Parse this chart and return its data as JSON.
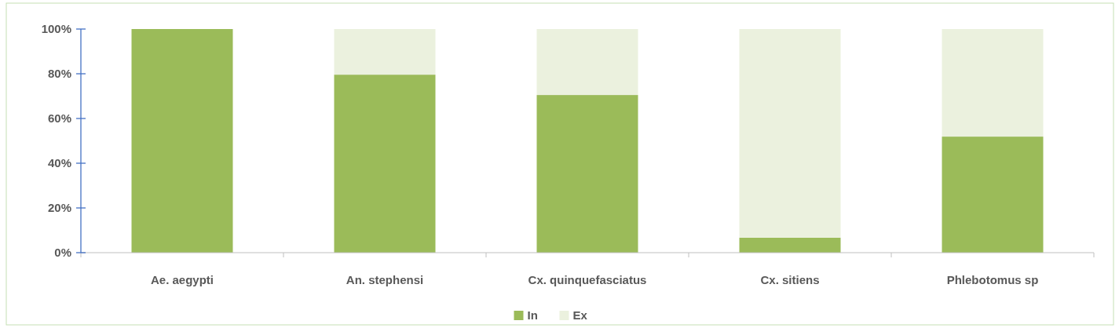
{
  "chart_data": {
    "type": "bar",
    "stacked": true,
    "categories": [
      "Ae. aegypti",
      "An. stephensi",
      "Cx. quinquefasciatus",
      "Cx. sitiens",
      "Phlebotomus sp"
    ],
    "series": [
      {
        "name": "In",
        "color": "#9bbb59",
        "values": [
          100,
          79.6,
          70.5,
          6.7,
          51.9
        ]
      },
      {
        "name": "Ex",
        "color": "#ebf1de",
        "values": [
          0,
          20.4,
          29.5,
          93.3,
          48.1
        ]
      }
    ],
    "ylim": [
      0,
      100
    ],
    "yticks": [
      {
        "value": 0,
        "label": "0%"
      },
      {
        "value": 20,
        "label": "20%"
      },
      {
        "value": 40,
        "label": "40%"
      },
      {
        "value": 60,
        "label": "60%"
      },
      {
        "value": 80,
        "label": "80%"
      },
      {
        "value": 100,
        "label": "100%"
      }
    ],
    "grid": false,
    "legend": "bottom"
  }
}
